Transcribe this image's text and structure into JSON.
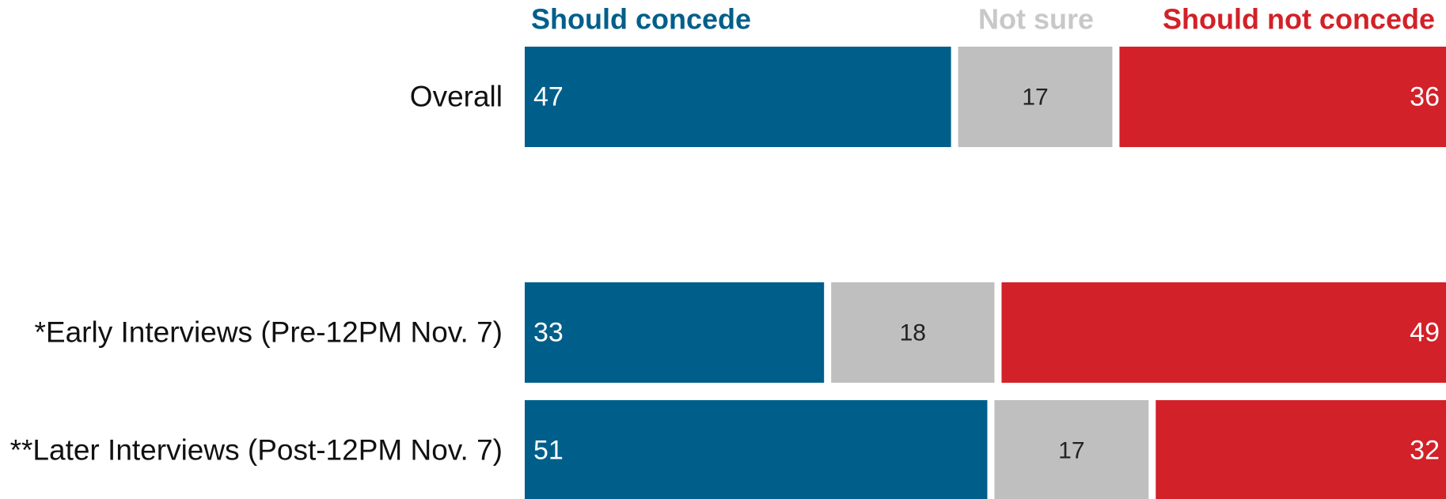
{
  "chart_data": {
    "type": "bar",
    "orientation": "horizontal",
    "stacked": true,
    "categories": [
      "Overall",
      "*Early Interviews (Pre-12PM Nov. 7)",
      "**Later Interviews (Post-12PM Nov. 7)"
    ],
    "series": [
      {
        "name": "Should concede",
        "color": "#005F8A",
        "values": [
          47,
          33,
          51
        ]
      },
      {
        "name": "Not sure",
        "color": "#BFBFBF",
        "values": [
          17,
          18,
          17
        ]
      },
      {
        "name": "Should not concede",
        "color": "#D22128",
        "values": [
          36,
          49,
          32
        ]
      }
    ],
    "xlim": [
      0,
      100
    ],
    "grid": false,
    "legend_placement": "top"
  }
}
